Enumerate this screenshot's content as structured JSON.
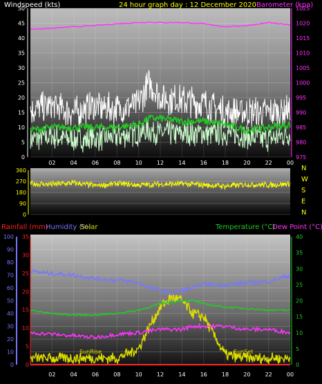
{
  "header": {
    "windspeed_label": "Windspeed (kts)",
    "title": "24 hour graph day : 12 December 2020",
    "barometer_label": "Barometer (kpa)"
  },
  "lower_header": {
    "rainfall_label": "Rainfall (mm)",
    "humidity_label": "Humidity (%)",
    "solar_label": "Solar",
    "temperature_label": "Temperature (°C)",
    "dewpoint_label": "Dew Point (°C)"
  },
  "annotations": {
    "sunrise": "SunRise",
    "sunset": "SunSet"
  },
  "compass": [
    "N",
    "W",
    "S",
    "E",
    "N"
  ],
  "colors": {
    "windspeed": "#ffffff",
    "wind_avg": "#22cc22",
    "wind_low": "#ccffcc",
    "barometer": "#ff33ff",
    "direction": "#ffff00",
    "rainfall": "#ff2222",
    "humidity": "#7777ff",
    "solar": "#dddd00",
    "temperature": "#22cc22",
    "dewpoint": "#ff33ff"
  },
  "chart_data": [
    {
      "type": "line",
      "title": "24 hour graph day : 12 December 2020",
      "xlabel": "",
      "ylabel": "Windspeed (kts)",
      "y2label": "Barometer (kpa)",
      "x_ticks": [
        "02",
        "04",
        "06",
        "08",
        "10",
        "12",
        "14",
        "16",
        "18",
        "20",
        "22",
        "00"
      ],
      "ylim": [
        0,
        50
      ],
      "y_ticks": [
        0,
        5,
        10,
        15,
        20,
        25,
        30,
        35,
        40,
        45,
        50
      ],
      "y2lim": [
        975,
        1025
      ],
      "y2_ticks": [
        975,
        980,
        985,
        990,
        995,
        1000,
        1005,
        1010,
        1015,
        1020,
        1025
      ],
      "x": [
        0,
        2,
        4,
        6,
        8,
        10,
        11,
        12,
        14,
        16,
        18,
        20,
        22,
        24
      ],
      "series": [
        {
          "name": "Windspeed (kts)",
          "axis": "left",
          "values": [
            16,
            17,
            15,
            17,
            16,
            18,
            25,
            20,
            19,
            18,
            15,
            15,
            15,
            16
          ]
        },
        {
          "name": "",
          "axis": "left",
          "values": [
            9,
            10,
            10,
            10,
            10,
            11,
            13,
            13,
            12,
            12,
            11,
            9,
            10,
            11
          ]
        },
        {
          "name": "",
          "axis": "left",
          "values": [
            6,
            7,
            6,
            6,
            7,
            8,
            9,
            8,
            8,
            8,
            8,
            7,
            6,
            8
          ]
        },
        {
          "name": "Barometer (kpa)",
          "axis": "right",
          "values": [
            1018,
            1018.3,
            1018.8,
            1019.2,
            1019.8,
            1020.2,
            1020.3,
            1020.2,
            1020.2,
            1019.8,
            1018.8,
            1019.2,
            1020.2,
            1019.4
          ]
        }
      ]
    },
    {
      "type": "scatter",
      "ylim": [
        0,
        360
      ],
      "y_ticks": [
        0,
        90,
        180,
        270,
        360
      ],
      "x": [
        0,
        2,
        4,
        6,
        8,
        10,
        12,
        14,
        16,
        18,
        20,
        22,
        24
      ],
      "series": [
        {
          "name": "",
          "values": [
            250,
            245,
            255,
            235,
            250,
            240,
            245,
            250,
            240,
            230,
            245,
            240,
            250
          ]
        }
      ]
    },
    {
      "type": "line",
      "x_ticks": [
        "02",
        "04",
        "06",
        "08",
        "10",
        "12",
        "14",
        "16",
        "18",
        "20",
        "22",
        "00"
      ],
      "humidity_lim": [
        0,
        100
      ],
      "humidity_ticks": [
        0,
        10,
        20,
        30,
        40,
        50,
        60,
        70,
        80,
        90,
        100
      ],
      "rainfall_lim": [
        0,
        35
      ],
      "rainfall_ticks": [
        0,
        5,
        10,
        15,
        20,
        25,
        30,
        35
      ],
      "temperature_lim": [
        0,
        40
      ],
      "temperature_ticks": [
        0,
        5,
        10,
        15,
        20,
        25,
        30,
        35,
        40
      ],
      "x": [
        0,
        2,
        4,
        6,
        8,
        10,
        11,
        12,
        13,
        14,
        15,
        16,
        18,
        20,
        22,
        24
      ],
      "series": [
        {
          "name": "Humidity (%)",
          "axis": "humidity",
          "values": [
            73,
            71,
            70,
            67,
            66,
            64,
            60,
            58,
            56,
            58,
            60,
            63,
            62,
            64,
            65,
            70
          ]
        },
        {
          "name": "Temperature (°C)",
          "axis": "temperature",
          "values": [
            17,
            16,
            15.5,
            15.5,
            16,
            17,
            18,
            19,
            19.5,
            20,
            20,
            19,
            18,
            17.5,
            17,
            17
          ]
        },
        {
          "name": "Dew Point (°C)",
          "axis": "temperature",
          "values": [
            10,
            9.5,
            9,
            8.5,
            9.5,
            10,
            10.5,
            11,
            11,
            11,
            12,
            12,
            12,
            11,
            11,
            10
          ]
        },
        {
          "name": "Solar",
          "axis": "temperature",
          "values": [
            2,
            2,
            2,
            2,
            2,
            5,
            12,
            18,
            21,
            20,
            16,
            15,
            3,
            2,
            2,
            2
          ]
        },
        {
          "name": "Rainfall (mm)",
          "axis": "rainfall",
          "values": [
            0,
            0,
            0,
            0,
            0,
            0,
            0,
            0,
            0,
            0,
            0,
            0,
            0,
            0,
            0,
            0
          ]
        }
      ]
    }
  ]
}
